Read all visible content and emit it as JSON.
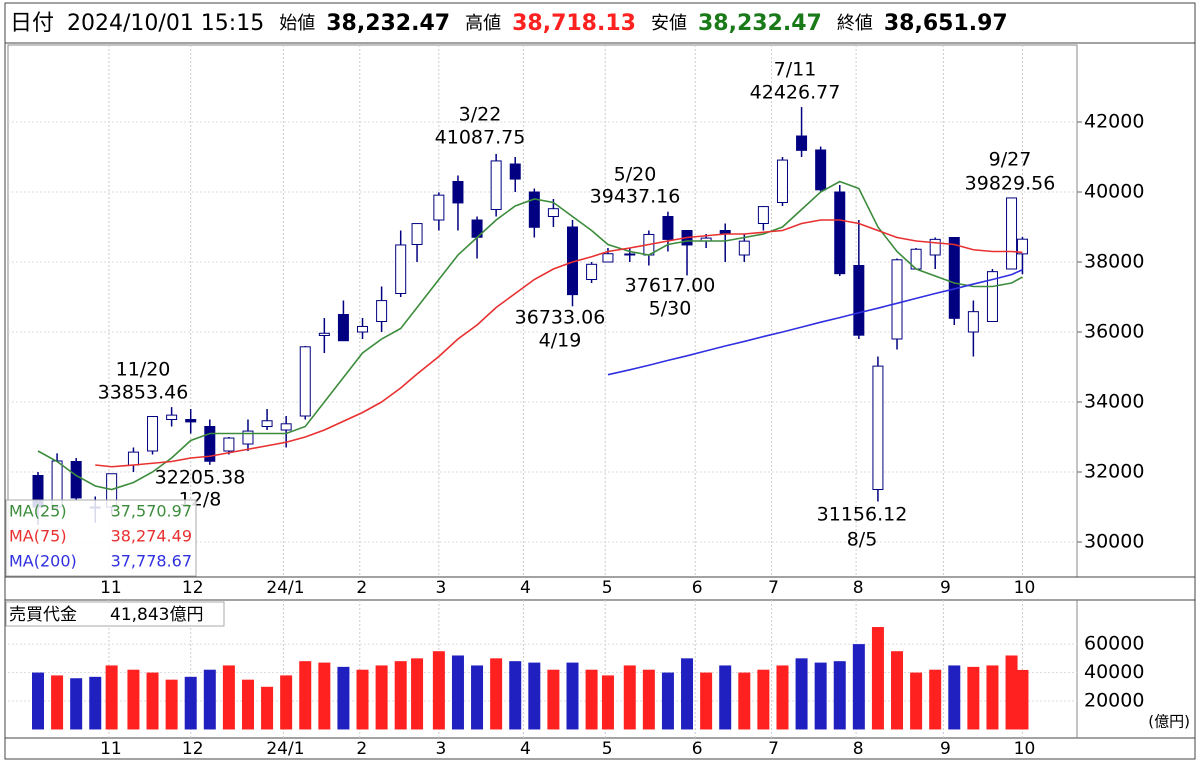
{
  "header": {
    "date_label": "日付",
    "datetime": "2024/10/01 15:15",
    "open_label": "始値",
    "open": "38,232.47",
    "high_label": "高値",
    "high": "38,718.13",
    "low_label": "安値",
    "low": "38,232.47",
    "close_label": "終値",
    "close": "38,651.97"
  },
  "chart_data": [
    {
      "type": "candlestick",
      "x": [
        "2023-10-06",
        "2023-10-13",
        "2023-10-20",
        "2023-10-27",
        "2023-11-02",
        "2023-11-10",
        "2023-11-17",
        "2023-11-24",
        "2023-12-01",
        "2023-12-08",
        "2023-12-15",
        "2023-12-22",
        "2023-12-29",
        "2024-01-05",
        "2024-01-12",
        "2024-01-19",
        "2024-01-26",
        "2024-02-02",
        "2024-02-09",
        "2024-02-16",
        "2024-02-22",
        "2024-03-01",
        "2024-03-08",
        "2024-03-15",
        "2024-03-22",
        "2024-03-29",
        "2024-04-05",
        "2024-04-12",
        "2024-04-19",
        "2024-04-26",
        "2024-05-02",
        "2024-05-10",
        "2024-05-17",
        "2024-05-24",
        "2024-05-31",
        "2024-06-07",
        "2024-06-14",
        "2024-06-21",
        "2024-06-28",
        "2024-07-05",
        "2024-07-12",
        "2024-07-19",
        "2024-07-26",
        "2024-08-02",
        "2024-08-09",
        "2024-08-16",
        "2024-08-23",
        "2024-08-30",
        "2024-09-06",
        "2024-09-13",
        "2024-09-20",
        "2024-09-27",
        "2024-10-01"
      ],
      "open": [
        31900,
        31000,
        32300,
        31000,
        31000,
        32200,
        32600,
        33500,
        33500,
        33300,
        32600,
        32800,
        33300,
        33200,
        33600,
        35900,
        36500,
        36000,
        36300,
        37100,
        38500,
        39200,
        40300,
        39200,
        39500,
        40800,
        40000,
        39300,
        39000,
        37500,
        38000,
        38200,
        38200,
        39300,
        38900,
        38600,
        38900,
        38200,
        39100,
        39700,
        41600,
        41200,
        40000,
        37900,
        31500,
        35800,
        37800,
        38200,
        38700,
        36000,
        36300,
        37800,
        38232.47
      ],
      "high": [
        32000,
        32533,
        32400,
        31300,
        31950,
        32700,
        33600,
        33853.46,
        33800,
        33500,
        33000,
        33500,
        33800,
        33600,
        35600,
        36400,
        36900,
        36400,
        37300,
        38900,
        39100,
        39990,
        40472,
        39300,
        41087.75,
        41000,
        40100,
        39800,
        39200,
        38000,
        38400,
        38400,
        38900,
        39437.16,
        38900,
        38800,
        39100,
        38800,
        39600,
        41000,
        42426.77,
        41300,
        40200,
        39200,
        35300,
        38100,
        38400,
        38700,
        38700,
        36900,
        37800,
        39829.56,
        38718.13
      ],
      "low": [
        30487,
        30900,
        31200,
        30551,
        30800,
        32000,
        32500,
        33300,
        33100,
        32205.38,
        32500,
        32600,
        33200,
        32700,
        33500,
        35400,
        35800,
        35800,
        36000,
        37000,
        38000,
        38900,
        38900,
        38100,
        39300,
        40000,
        38700,
        39000,
        36733.06,
        37400,
        38000,
        38000,
        37900,
        38300,
        37617,
        38400,
        38000,
        38000,
        38900,
        39600,
        41000,
        40000,
        37600,
        35800,
        31156.12,
        35500,
        37800,
        37800,
        36200,
        35300,
        36300,
        37800,
        37651
      ],
      "close": [
        30995,
        32315,
        31259,
        30991,
        31950,
        32568,
        33585,
        33625,
        33431,
        32307,
        32970,
        33169,
        33464,
        33377,
        35577,
        35963,
        35751,
        36158,
        36897,
        38487,
        39098,
        39910,
        39688,
        38707,
        40888,
        40369,
        38992,
        39523,
        37068,
        37934,
        38236,
        38229,
        38787,
        38646,
        38487,
        38683,
        38814,
        38596,
        39583,
        40912,
        41190,
        40063,
        37667,
        35909,
        35025,
        38063,
        38364,
        38647,
        36391,
        36581,
        37724,
        39830,
        38651.97
      ],
      "colors": {
        "up": "#ffffff",
        "down": "#000080",
        "edge": "#000080"
      },
      "ma": [
        {
          "name": "MA(25)",
          "color": "#3c8c3c",
          "value_label": "37,570.97",
          "values": [
            32600,
            32300,
            31900,
            31600,
            31500,
            31700,
            32000,
            32400,
            32900,
            33100,
            33100,
            33100,
            33100,
            33100,
            33300,
            34000,
            34700,
            35400,
            35800,
            36100,
            36700,
            37500,
            38200,
            38700,
            39200,
            39600,
            39800,
            39700,
            39300,
            38900,
            38500,
            38300,
            38200,
            38500,
            38600,
            38600,
            38600,
            38700,
            38800,
            39000,
            39500,
            40000,
            40300,
            40100,
            39000,
            38300,
            37800,
            37600,
            37400,
            37300,
            37300,
            37400,
            37570.97
          ]
        },
        {
          "name": "MA(75)",
          "color": "#e83030",
          "value_label": "38,274.49",
          "values": [
            null,
            null,
            null,
            32200,
            32150,
            32200,
            32250,
            32300,
            32400,
            32450,
            32550,
            32650,
            32750,
            32850,
            33000,
            33200,
            33450,
            33700,
            34000,
            34400,
            34800,
            35300,
            35800,
            36200,
            36700,
            37100,
            37500,
            37800,
            38000,
            38150,
            38300,
            38400,
            38500,
            38600,
            38700,
            38750,
            38800,
            38800,
            38850,
            38900,
            39100,
            39200,
            39200,
            39100,
            38900,
            38700,
            38600,
            38550,
            38500,
            38350,
            38300,
            38300,
            38274.49
          ]
        },
        {
          "name": "MA(200)",
          "color": "#3030e0",
          "value_label": "37,778.67",
          "values": [
            null,
            null,
            null,
            null,
            null,
            null,
            null,
            null,
            null,
            null,
            null,
            null,
            null,
            null,
            null,
            null,
            null,
            null,
            null,
            null,
            null,
            null,
            null,
            null,
            null,
            null,
            null,
            null,
            null,
            null,
            34780,
            34920,
            35050,
            35190,
            35320,
            35460,
            35600,
            35730,
            35870,
            36000,
            36140,
            36280,
            36410,
            36550,
            36680,
            36820,
            36960,
            37100,
            37230,
            37370,
            37500,
            37640,
            37778.67
          ]
        }
      ],
      "xlim": [
        "2023-09-25",
        "2024-10-21"
      ],
      "xticks": [
        {
          "value": "2023-11-01",
          "label": "11"
        },
        {
          "value": "2023-12-01",
          "label": "12"
        },
        {
          "value": "2024-01-04",
          "label": "24/1"
        },
        {
          "value": "2024-02-01",
          "label": "2"
        },
        {
          "value": "2024-03-01",
          "label": "3"
        },
        {
          "value": "2024-04-01",
          "label": "4"
        },
        {
          "value": "2024-05-01",
          "label": "5"
        },
        {
          "value": "2024-06-03",
          "label": "6"
        },
        {
          "value": "2024-07-01",
          "label": "7"
        },
        {
          "value": "2024-08-01",
          "label": "8"
        },
        {
          "value": "2024-09-02",
          "label": "9"
        },
        {
          "value": "2024-10-01",
          "label": "10"
        }
      ],
      "ylim": [
        29000,
        44200
      ],
      "yticks": [
        30000,
        32000,
        34000,
        36000,
        38000,
        40000,
        42000
      ],
      "grid": true,
      "annotations": [
        {
          "date": "11/20",
          "value": "33853.46"
        },
        {
          "date": "12/8",
          "value": "32205.38"
        },
        {
          "date": "3/22",
          "value": "41087.75"
        },
        {
          "date": "4/19",
          "value": "36733.06"
        },
        {
          "date": "5/20",
          "value": "39437.16"
        },
        {
          "date": "5/30",
          "value": "37617.00"
        },
        {
          "date": "7/11",
          "value": "42426.77"
        },
        {
          "date": "8/5",
          "value": "31156.12"
        },
        {
          "date": "9/27",
          "value": "39829.56"
        }
      ]
    },
    {
      "type": "bar",
      "title": "売買代金",
      "latest": "41,843億円",
      "unit": "(億円)",
      "x": [
        "2023-10-06",
        "2023-10-13",
        "2023-10-20",
        "2023-10-27",
        "2023-11-02",
        "2023-11-10",
        "2023-11-17",
        "2023-11-24",
        "2023-12-01",
        "2023-12-08",
        "2023-12-15",
        "2023-12-22",
        "2023-12-29",
        "2024-01-05",
        "2024-01-12",
        "2024-01-19",
        "2024-01-26",
        "2024-02-02",
        "2024-02-09",
        "2024-02-16",
        "2024-02-22",
        "2024-03-01",
        "2024-03-08",
        "2024-03-15",
        "2024-03-22",
        "2024-03-29",
        "2024-04-05",
        "2024-04-12",
        "2024-04-19",
        "2024-04-26",
        "2024-05-02",
        "2024-05-10",
        "2024-05-17",
        "2024-05-24",
        "2024-05-31",
        "2024-06-07",
        "2024-06-14",
        "2024-06-21",
        "2024-06-28",
        "2024-07-05",
        "2024-07-12",
        "2024-07-19",
        "2024-07-26",
        "2024-08-02",
        "2024-08-09",
        "2024-08-16",
        "2024-08-23",
        "2024-08-30",
        "2024-09-06",
        "2024-09-13",
        "2024-09-20",
        "2024-09-27",
        "2024-10-01"
      ],
      "values": [
        40000,
        38000,
        36000,
        37000,
        45000,
        42000,
        40000,
        35000,
        37000,
        42000,
        45000,
        35000,
        30000,
        38000,
        48000,
        47000,
        44000,
        42000,
        45000,
        48000,
        50000,
        55000,
        52000,
        45000,
        50000,
        48000,
        47000,
        42000,
        47000,
        42000,
        38000,
        45000,
        42000,
        40000,
        50000,
        40000,
        45000,
        40000,
        42000,
        45000,
        50000,
        47000,
        48000,
        60000,
        72000,
        55000,
        40000,
        42000,
        45000,
        44000,
        45000,
        52000,
        41843
      ],
      "up_color": "#ff2020",
      "down_color": "#2020c0",
      "ylim": [
        -6000,
        91000
      ],
      "yticks": [
        20000,
        40000,
        60000
      ],
      "grid": true
    }
  ]
}
